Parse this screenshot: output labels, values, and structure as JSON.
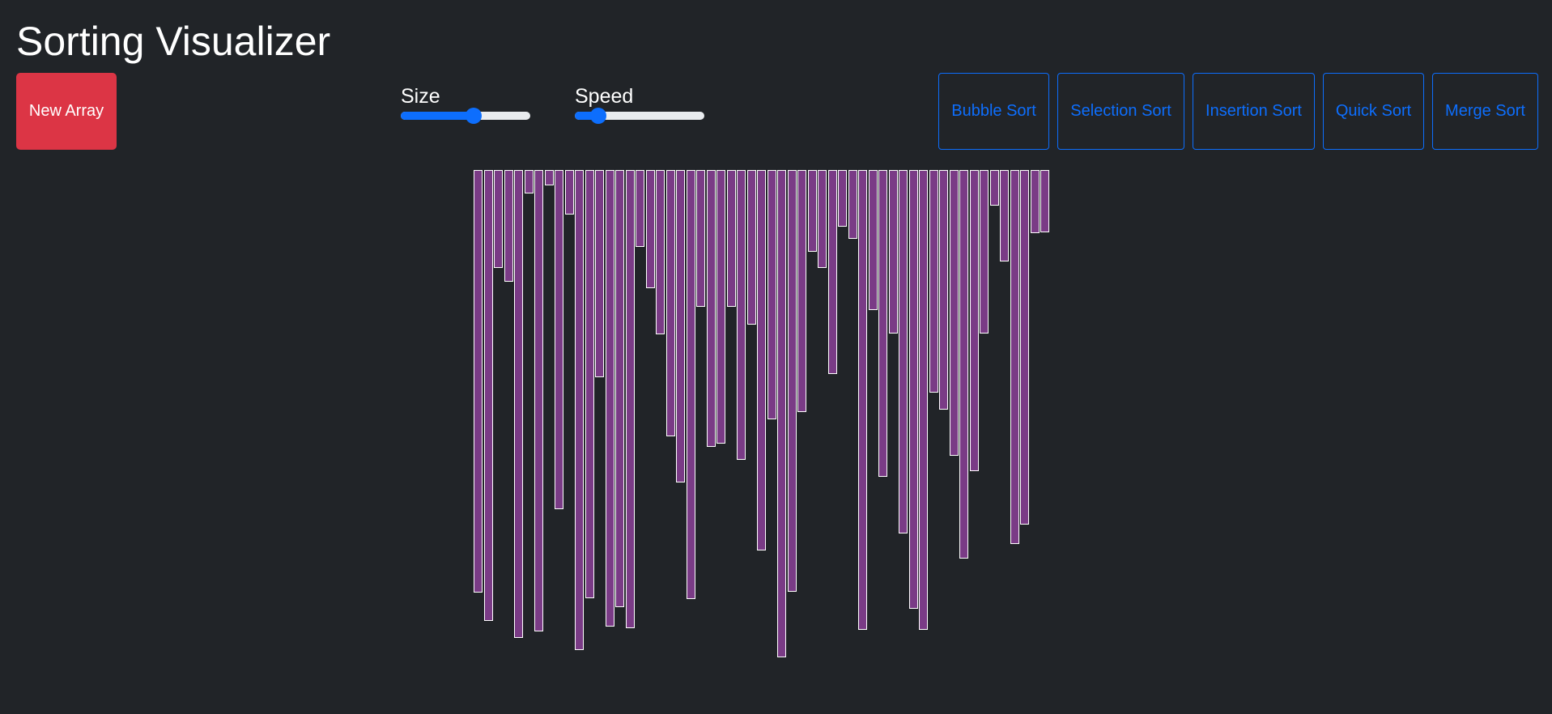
{
  "app": {
    "title": "Sorting Visualizer"
  },
  "controls": {
    "new_array_label": "New Array",
    "size": {
      "label": "Size",
      "value": 0.56
    },
    "speed": {
      "label": "Speed",
      "value": 0.18
    }
  },
  "sort_buttons": [
    "Bubble Sort",
    "Selection Sort",
    "Insertion Sort",
    "Quick Sort",
    "Merge Sort"
  ],
  "colors": {
    "background": "#212428",
    "new_array_button": "#dc3545",
    "accent": "#0d6efd",
    "bar": "#7a3b86",
    "bar_border": "#ffffff"
  },
  "chart_data": {
    "type": "bar",
    "values": [
      435,
      464,
      101,
      115,
      482,
      24,
      475,
      16,
      349,
      46,
      494,
      441,
      213,
      470,
      450,
      472,
      79,
      122,
      169,
      274,
      322,
      442,
      141,
      285,
      282,
      141,
      298,
      159,
      392,
      257,
      502,
      434,
      249,
      84,
      101,
      210,
      58,
      71,
      473,
      144,
      316,
      168,
      374,
      452,
      473,
      229,
      247,
      294,
      400,
      310,
      168,
      37,
      94,
      385,
      365,
      65,
      64
    ]
  }
}
